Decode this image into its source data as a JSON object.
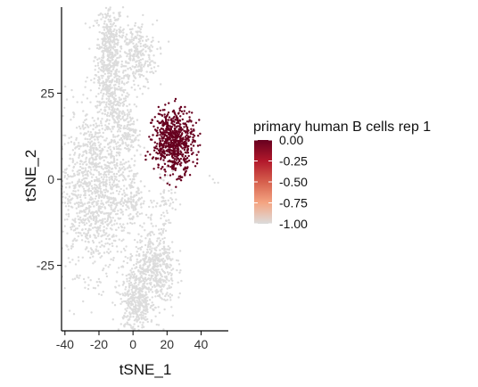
{
  "chart_data": {
    "type": "scatter",
    "xlabel": "tSNE_1",
    "ylabel": "tSNE_2",
    "xlim": [
      -42,
      56
    ],
    "ylim": [
      -44,
      50
    ],
    "x_ticks": [
      -40,
      -20,
      0,
      20,
      40
    ],
    "y_ticks": [
      -25,
      0,
      25
    ],
    "x_tick_labels": [
      "-40",
      "-20",
      "0",
      "20",
      "40"
    ],
    "y_tick_labels": [
      "-25",
      "0",
      "25"
    ],
    "grid": false,
    "legend": {
      "title": "primary human B cells rep 1",
      "placement": "right",
      "type": "colorbar",
      "range": [
        -1.0,
        0.0
      ],
      "breaks": [
        0.0,
        -0.25,
        -0.5,
        -0.75,
        -1.0
      ],
      "labels": [
        "0.00",
        "-0.25",
        "-0.50",
        "-0.75",
        "-1.00"
      ],
      "low_color": "#dcdcdc",
      "high_color": "#67001f"
    },
    "series": [
      {
        "value": -1.0,
        "color": "#dcdcdc",
        "clusters": [
          {
            "cx": -14,
            "cy": 36,
            "sx": 4,
            "sy": 8,
            "n": 500
          },
          {
            "cx": 2,
            "cy": 36,
            "sx": 6,
            "sy": 5,
            "n": 280
          },
          {
            "cx": -10,
            "cy": 20,
            "sx": 5,
            "sy": 6,
            "n": 220
          },
          {
            "cx": -1,
            "cy": 13,
            "sx": 3,
            "sy": 3,
            "n": 70
          },
          {
            "cx": -22,
            "cy": -3,
            "sx": 12,
            "sy": 12,
            "n": 1300
          },
          {
            "cx": 1,
            "cy": -5,
            "sx": 2.5,
            "sy": 3,
            "n": 60
          },
          {
            "cx": 20,
            "cy": -6,
            "sx": 3,
            "sy": 5,
            "n": 60
          },
          {
            "cx": 13,
            "cy": -26,
            "sx": 6,
            "sy": 6,
            "n": 450
          },
          {
            "cx": 2,
            "cy": -35,
            "sx": 5,
            "sy": 5,
            "n": 400
          }
        ],
        "extra_points": [
          [
            47,
            0
          ],
          [
            50,
            -1
          ],
          [
            45,
            1
          ],
          [
            48,
            -1
          ],
          [
            -24,
            7
          ],
          [
            -23,
            8
          ]
        ]
      },
      {
        "value": 0.0,
        "color": "#67001f",
        "clusters": [
          {
            "cx": 24,
            "cy": 11,
            "sx": 6,
            "sy": 4.5,
            "n": 650
          }
        ],
        "extra_points": [
          [
            15,
            21
          ],
          [
            16,
            20
          ],
          [
            15,
            19
          ],
          [
            20,
            15
          ]
        ]
      }
    ]
  }
}
